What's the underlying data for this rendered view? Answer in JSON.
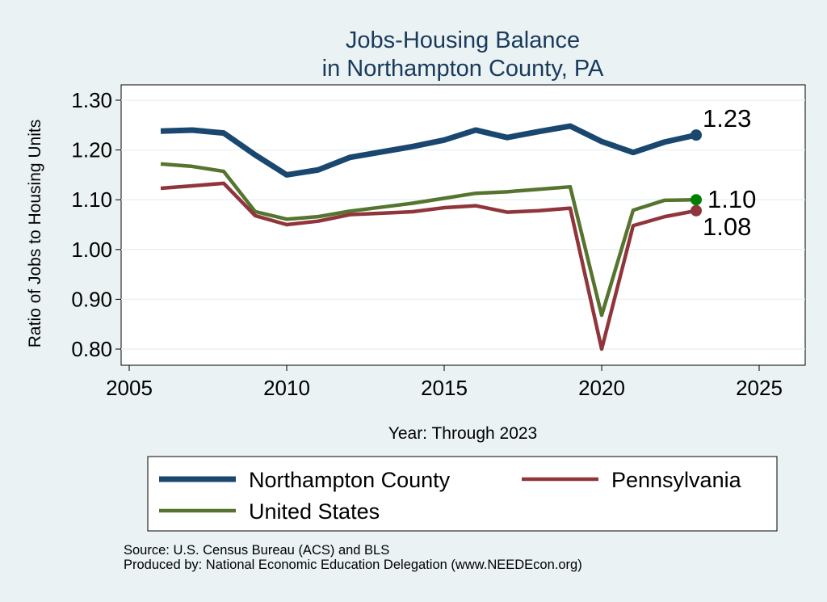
{
  "chart_data": {
    "type": "line",
    "title": [
      "Jobs-Housing Balance",
      "in Northampton County, PA"
    ],
    "xlabel": "Year: Through 2023",
    "ylabel": "Ratio of Jobs to Housing Units",
    "xlim": [
      2005,
      2026.5
    ],
    "ylim": [
      0.78,
      1.33
    ],
    "xticks": [
      2005,
      2010,
      2015,
      2020,
      2025
    ],
    "yticks": [
      0.8,
      0.9,
      1.0,
      1.1,
      1.2,
      1.3
    ],
    "ytick_labels": [
      "0.80",
      "0.90",
      "1.00",
      "1.10",
      "1.20",
      "1.30"
    ],
    "grid": true,
    "x": [
      2006,
      2007,
      2008,
      2009,
      2010,
      2011,
      2012,
      2013,
      2014,
      2015,
      2016,
      2017,
      2018,
      2019,
      2020,
      2021,
      2022,
      2023
    ],
    "series": [
      {
        "name": "Northampton County",
        "color": "#1a476f",
        "width": 7,
        "values": [
          1.238,
          1.24,
          1.234,
          1.19,
          1.15,
          1.16,
          1.185,
          1.196,
          1.207,
          1.22,
          1.24,
          1.225,
          1.237,
          1.248,
          1.217,
          1.195,
          1.216,
          1.23
        ],
        "end_label": "1.23"
      },
      {
        "name": "Pennsylvania",
        "color": "#90353b",
        "width": 4.5,
        "values": [
          1.123,
          1.128,
          1.133,
          1.068,
          1.05,
          1.057,
          1.07,
          1.073,
          1.076,
          1.084,
          1.088,
          1.075,
          1.078,
          1.083,
          0.8,
          1.048,
          1.066,
          1.078
        ],
        "end_label": "1.08"
      },
      {
        "name": "United States",
        "color": "#55752f",
        "width": 4.5,
        "values": [
          1.172,
          1.167,
          1.157,
          1.076,
          1.061,
          1.066,
          1.077,
          1.085,
          1.093,
          1.103,
          1.113,
          1.116,
          1.121,
          1.126,
          0.868,
          1.079,
          1.099,
          1.1
        ],
        "end_label": "1.10"
      }
    ],
    "legend": {
      "placement": "bottom",
      "entries": [
        "Northampton County",
        "Pennsylvania",
        "United States"
      ]
    },
    "notes": [
      "Source: U.S. Census Bureau (ACS) and BLS",
      "Produced by: National Economic Education Delegation (www.NEEDEcon.org)"
    ]
  }
}
